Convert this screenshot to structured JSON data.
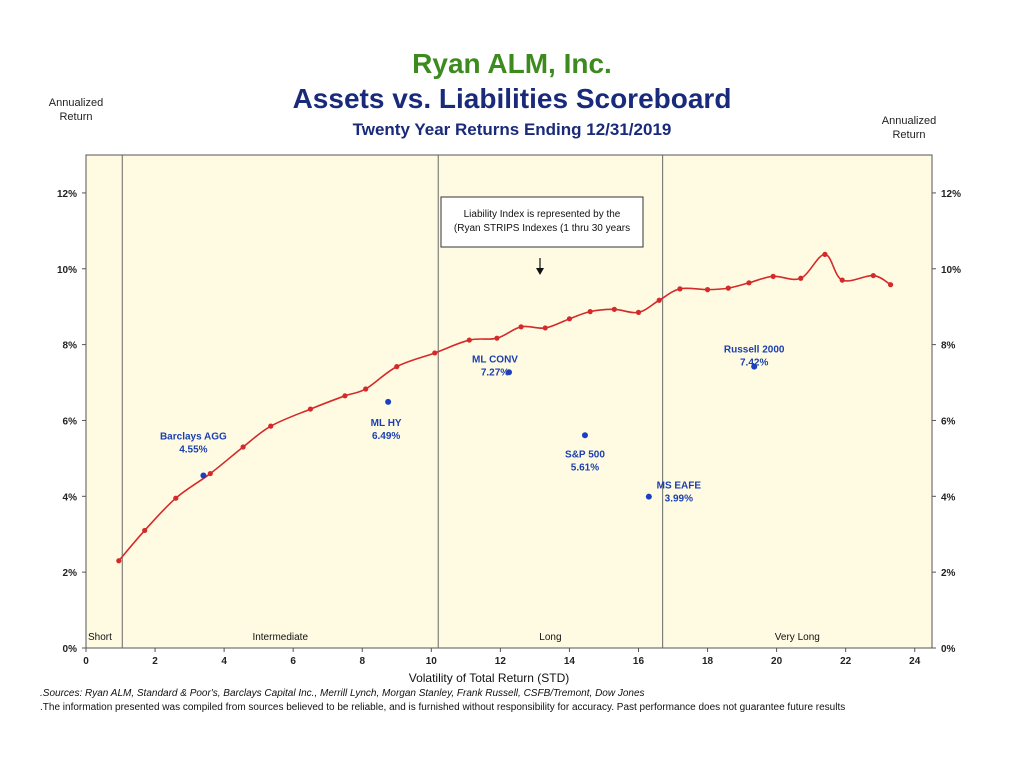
{
  "header": {
    "company": "Ryan ALM, Inc.",
    "title": "Assets vs. Liabilities Scoreboard",
    "subtitle": "Twenty Year Returns Ending 12/31/2019"
  },
  "axis_captions": {
    "left": "Annualized Return",
    "right": "Annualized Return"
  },
  "footnotes": {
    "sources": ".Sources: Ryan ALM, Standard & Poor's, Barclays Capital Inc., Merrill Lynch, Morgan Stanley, Frank Russell, CSFB/Tremont, Dow Jones",
    "disclaimer": ".The information presented  was compiled from sources believed to be reliable, and is furnished without responsibility for accuracy. Past performance does not guarantee future results"
  },
  "colors": {
    "plot_bg": "#fffbe3",
    "line": "#d42a2a",
    "asset_dot": "#1a3fc4",
    "label": "#1a3fb0"
  },
  "chart_data": {
    "type": "line",
    "title": "Assets vs. Liabilities Scoreboard",
    "xlabel": "Volatility of Total Return (STD)",
    "ylabel": "Annualized Return",
    "xlim": [
      0,
      24.5
    ],
    "ylim": [
      0,
      13
    ],
    "x_ticks": [
      0,
      2,
      4,
      6,
      8,
      10,
      12,
      14,
      16,
      18,
      20,
      22,
      24
    ],
    "y_ticks": [
      0,
      2,
      4,
      6,
      8,
      10,
      12
    ],
    "y_tick_labels": [
      "0%",
      "2%",
      "4%",
      "6%",
      "8%",
      "10%",
      "12%"
    ],
    "regions": [
      {
        "label": "Short",
        "from": 0,
        "to": 1.05
      },
      {
        "label": "Intermediate",
        "from": 1.05,
        "to": 10.2
      },
      {
        "label": "Long",
        "from": 10.2,
        "to": 16.7
      },
      {
        "label": "Very Long",
        "from": 16.7,
        "to": 24.5
      }
    ],
    "annotation": "Liability Index is represented by the (Ryan STRIPS Indexes (1 thru 30 years",
    "annotation_lines": [
      "Liability Index is represented by the",
      "(Ryan STRIPS Indexes (1 thru 30 years"
    ],
    "series": [
      {
        "name": "Liability Index (Ryan STRIPS 1-30 years)",
        "points": [
          [
            0.95,
            2.3
          ],
          [
            1.7,
            3.1
          ],
          [
            2.6,
            3.95
          ],
          [
            3.6,
            4.6
          ],
          [
            4.55,
            5.3
          ],
          [
            5.35,
            5.85
          ],
          [
            6.5,
            6.3
          ],
          [
            7.5,
            6.65
          ],
          [
            8.1,
            6.83
          ],
          [
            9.0,
            7.42
          ],
          [
            10.1,
            7.78
          ],
          [
            11.1,
            8.12
          ],
          [
            11.9,
            8.17
          ],
          [
            12.6,
            8.47
          ],
          [
            13.3,
            8.44
          ],
          [
            14.0,
            8.68
          ],
          [
            14.6,
            8.87
          ],
          [
            15.3,
            8.93
          ],
          [
            16.0,
            8.85
          ],
          [
            16.6,
            9.17
          ],
          [
            17.2,
            9.47
          ],
          [
            18.0,
            9.45
          ],
          [
            18.6,
            9.49
          ],
          [
            19.2,
            9.63
          ],
          [
            19.9,
            9.8
          ],
          [
            20.7,
            9.75
          ],
          [
            21.4,
            10.38
          ],
          [
            21.9,
            9.7
          ],
          [
            22.8,
            9.82
          ],
          [
            23.3,
            9.58
          ]
        ]
      }
    ],
    "assets": [
      {
        "name": "Barclays AGG",
        "value_label": "4.55%",
        "x": 3.4,
        "y": 4.55
      },
      {
        "name": "ML HY",
        "value_label": "6.49%",
        "x": 8.75,
        "y": 6.49
      },
      {
        "name": "ML CONV",
        "value_label": "7.27%",
        "x": 12.25,
        "y": 7.27
      },
      {
        "name": "S&P 500",
        "value_label": "5.61%",
        "x": 14.45,
        "y": 5.61
      },
      {
        "name": "MS EAFE",
        "value_label": "3.99%",
        "x": 16.3,
        "y": 3.99
      },
      {
        "name": "Russell 2000",
        "value_label": "7.42%",
        "x": 19.35,
        "y": 7.42
      }
    ]
  }
}
